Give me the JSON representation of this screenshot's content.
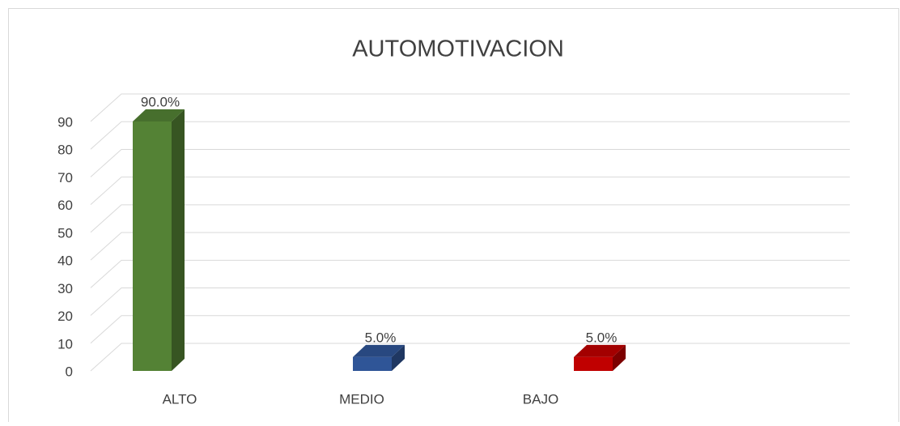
{
  "chart_data": {
    "type": "bar",
    "title": "AUTOMOTIVACION",
    "categories": [
      "ALTO",
      "MEDIO",
      "BAJO"
    ],
    "values": [
      90,
      5,
      5
    ],
    "value_labels": [
      "90.0%",
      "5.0%",
      "5.0%"
    ],
    "colors": [
      "#548235",
      "#2f5597",
      "#c00000"
    ],
    "ylim": [
      0,
      90
    ],
    "yticks": [
      0,
      10,
      20,
      30,
      40,
      50,
      60,
      70,
      80,
      90
    ],
    "grid": true
  }
}
